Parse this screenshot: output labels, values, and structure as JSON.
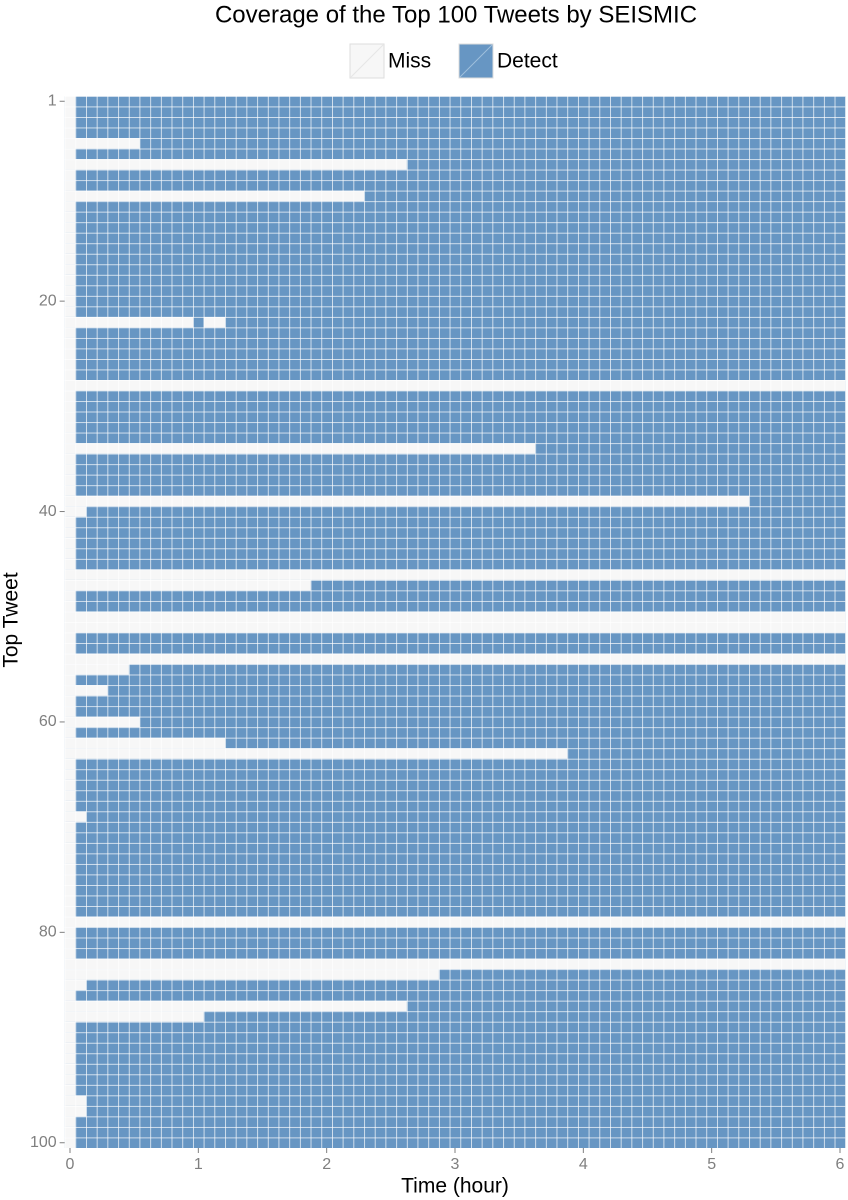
{
  "chart_data": {
    "type": "heatmap",
    "title": "Coverage of the Top 100 Tweets by SEISMIC",
    "x_label": "Time (hour)",
    "y_label": "Top Tweet",
    "legend": [
      {
        "name": "Miss",
        "color": "#f7f7f7"
      },
      {
        "name": "Detect",
        "color": "#6796c3"
      }
    ],
    "xlim": [
      -0.0417,
      6.0417
    ],
    "xticks": [
      0,
      1,
      2,
      3,
      4,
      5,
      6
    ],
    "ylim": [
      0.5,
      100.5
    ],
    "yticks": [
      1,
      20,
      40,
      60,
      80,
      100
    ],
    "miss_until": [
      0,
      0,
      0,
      0,
      0.5,
      0,
      2.583,
      0,
      0,
      2.25,
      0,
      0,
      0,
      0,
      0,
      0,
      0,
      0,
      0,
      0,
      0,
      0.917,
      0,
      0,
      0,
      0,
      0,
      6,
      0,
      0,
      0,
      0,
      0,
      3.583,
      0,
      0,
      0,
      0,
      5.25,
      0.083,
      0,
      0,
      0,
      0,
      0,
      6,
      1.833,
      0,
      0,
      6,
      6,
      0,
      0,
      6,
      0.417,
      0,
      0.25,
      0,
      0,
      0.5,
      0,
      1.167,
      3.833,
      0,
      0,
      0,
      0,
      0,
      0.083,
      0,
      0,
      0,
      0,
      0,
      0,
      0,
      0,
      0,
      6,
      0,
      0,
      0,
      6,
      2.833,
      0.083,
      0,
      2.583,
      1.0,
      0,
      0,
      0,
      0,
      0,
      0,
      0,
      0.083,
      0.083,
      0,
      0,
      0
    ],
    "extra_misses": [
      {
        "row": 22,
        "from": 1.083,
        "to": 1.167
      }
    ]
  }
}
